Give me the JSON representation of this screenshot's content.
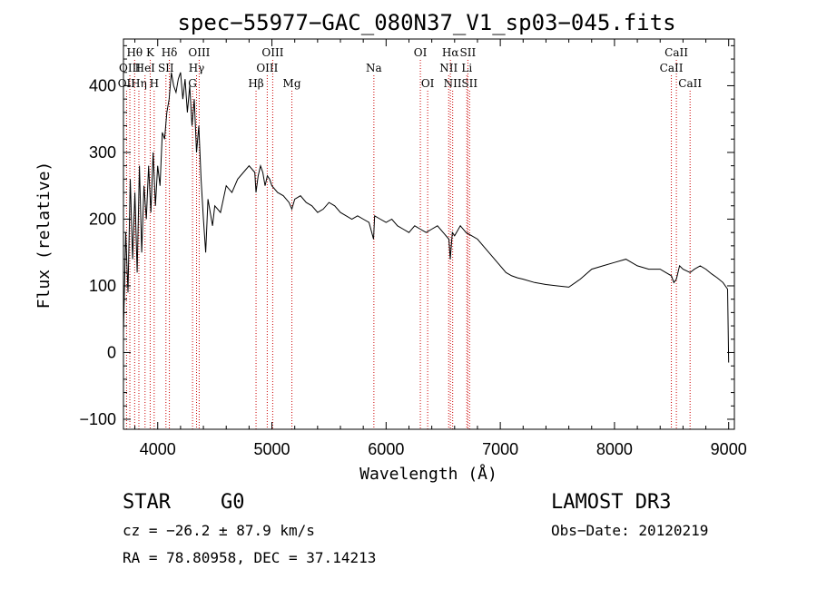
{
  "chart_data": {
    "type": "line",
    "title": "spec−55977−GAC_080N37_V1_sp03−045.fits",
    "xlabel": "Wavelength (Å)",
    "ylabel": "Flux (relative)",
    "xlim": [
      3700,
      9050
    ],
    "ylim": [
      -115,
      470
    ],
    "xticks": [
      4000,
      5000,
      6000,
      7000,
      8000,
      9000
    ],
    "xtick_labels": [
      "4000",
      "5000",
      "6000",
      "7000",
      "8000",
      "9000"
    ],
    "yticks": [
      -100,
      0,
      100,
      200,
      300,
      400
    ],
    "ytick_labels": [
      "−100",
      "0",
      "100",
      "200",
      "300",
      "400"
    ],
    "grid": false,
    "series": [
      {
        "name": "flux",
        "x": [
          3700,
          3720,
          3740,
          3760,
          3780,
          3800,
          3820,
          3840,
          3860,
          3880,
          3900,
          3920,
          3940,
          3960,
          3980,
          4000,
          4020,
          4040,
          4060,
          4080,
          4100,
          4120,
          4140,
          4160,
          4180,
          4200,
          4220,
          4240,
          4260,
          4280,
          4300,
          4320,
          4340,
          4360,
          4380,
          4400,
          4420,
          4440,
          4460,
          4480,
          4500,
          4550,
          4600,
          4650,
          4700,
          4750,
          4800,
          4850,
          4861,
          4880,
          4900,
          4920,
          4940,
          4960,
          4980,
          5000,
          5050,
          5100,
          5150,
          5175,
          5200,
          5250,
          5300,
          5350,
          5400,
          5450,
          5500,
          5550,
          5600,
          5650,
          5700,
          5750,
          5800,
          5850,
          5890,
          5900,
          5950,
          6000,
          6050,
          6100,
          6150,
          6200,
          6250,
          6300,
          6350,
          6400,
          6450,
          6500,
          6550,
          6562,
          6580,
          6600,
          6650,
          6700,
          6750,
          6800,
          6850,
          6900,
          6950,
          7000,
          7050,
          7100,
          7150,
          7200,
          7300,
          7400,
          7500,
          7600,
          7700,
          7800,
          7900,
          8000,
          8100,
          8200,
          8300,
          8400,
          8450,
          8498,
          8520,
          8542,
          8570,
          8600,
          8662,
          8700,
          8750,
          8800,
          8850,
          8900,
          8950,
          8990,
          9000
        ],
        "values": [
          30,
          180,
          90,
          260,
          140,
          240,
          120,
          280,
          150,
          250,
          200,
          280,
          210,
          300,
          220,
          280,
          250,
          330,
          320,
          360,
          380,
          420,
          400,
          390,
          410,
          420,
          380,
          410,
          360,
          400,
          340,
          380,
          300,
          340,
          260,
          200,
          150,
          230,
          210,
          190,
          220,
          210,
          250,
          240,
          260,
          270,
          280,
          270,
          240,
          265,
          280,
          270,
          250,
          265,
          260,
          250,
          240,
          235,
          225,
          215,
          230,
          235,
          225,
          220,
          210,
          215,
          225,
          220,
          210,
          205,
          200,
          205,
          200,
          195,
          170,
          205,
          200,
          195,
          200,
          190,
          185,
          180,
          190,
          185,
          180,
          185,
          190,
          180,
          170,
          140,
          180,
          175,
          190,
          180,
          175,
          170,
          160,
          150,
          140,
          130,
          120,
          115,
          112,
          110,
          105,
          102,
          100,
          98,
          110,
          125,
          130,
          135,
          140,
          130,
          125,
          125,
          120,
          115,
          105,
          110,
          130,
          125,
          120,
          125,
          130,
          125,
          118,
          112,
          105,
          95,
          -15
        ]
      }
    ],
    "line_markers": [
      {
        "name": "OII",
        "wavelength": 3727,
        "row": 2
      },
      {
        "name": "Hθ",
        "wavelength": 3798,
        "row": 0
      },
      {
        "name": "OIII",
        "wavelength": 3756,
        "row": 1
      },
      {
        "name": "Hη",
        "wavelength": 3835,
        "row": 2
      },
      {
        "name": "HeI",
        "wavelength": 3889,
        "row": 1
      },
      {
        "name": "K",
        "wavelength": 3934,
        "row": 0
      },
      {
        "name": "H",
        "wavelength": 3969,
        "row": 2
      },
      {
        "name": "SII",
        "wavelength": 4072,
        "row": 1
      },
      {
        "name": "Hδ",
        "wavelength": 4102,
        "row": 0
      },
      {
        "name": "G",
        "wavelength": 4305,
        "row": 2
      },
      {
        "name": "Hγ",
        "wavelength": 4340,
        "row": 1
      },
      {
        "name": "OIII",
        "wavelength": 4363,
        "row": 0
      },
      {
        "name": "Hβ",
        "wavelength": 4861,
        "row": 2
      },
      {
        "name": "OIII",
        "wavelength": 4959,
        "row": 1
      },
      {
        "name": "OIII",
        "wavelength": 5007,
        "row": 0
      },
      {
        "name": "Mg",
        "wavelength": 5175,
        "row": 2
      },
      {
        "name": "Na",
        "wavelength": 5893,
        "row": 1
      },
      {
        "name": "OI",
        "wavelength": 6300,
        "row": 0
      },
      {
        "name": "OI",
        "wavelength": 6364,
        "row": 2
      },
      {
        "name": "NII",
        "wavelength": 6548,
        "row": 1
      },
      {
        "name": "Hα",
        "wavelength": 6563,
        "row": 0
      },
      {
        "name": "NII",
        "wavelength": 6583,
        "row": 2
      },
      {
        "name": "Li",
        "wavelength": 6707,
        "row": 1
      },
      {
        "name": "SII",
        "wavelength": 6716,
        "row": 0
      },
      {
        "name": "SII",
        "wavelength": 6731,
        "row": 2
      },
      {
        "name": "CaII",
        "wavelength": 8498,
        "row": 1
      },
      {
        "name": "CaII",
        "wavelength": 8542,
        "row": 0
      },
      {
        "name": "CaII",
        "wavelength": 8662,
        "row": 2
      }
    ]
  },
  "footer": {
    "object_type": "STAR",
    "subclass": "G0",
    "survey": "LAMOST DR3",
    "redshift": "cz = −26.2 ± 87.9 km/s",
    "obs_date": "Obs−Date: 20120219",
    "coords": "RA =  78.80958, DEC =  37.14213"
  },
  "colors": {
    "line_marker": "#cc0000",
    "spectrum": "#000000",
    "axes": "#000000"
  }
}
